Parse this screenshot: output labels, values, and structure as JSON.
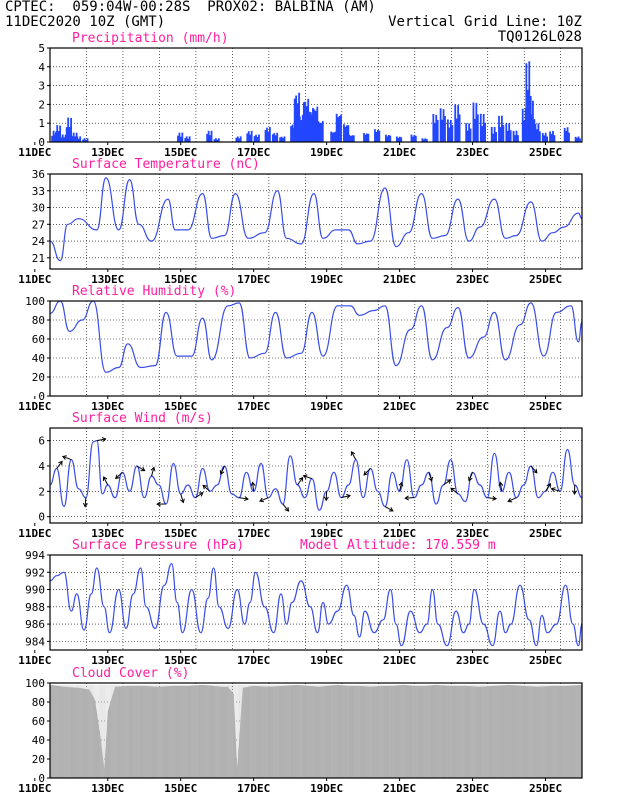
{
  "header": {
    "line1": "CPTEC:  059:04W-00:28S  PROX02: BALBINA (AM)",
    "line2": "11DEC2020 10Z (GMT)",
    "grid_note": "Vertical Grid Line: 10Z",
    "code": "TQ0126L028",
    "header_color": "#ff7f1e",
    "title_color": "#ff1ea0",
    "line_color": "#3a4de8",
    "bar_color": "#2346ff",
    "cloud_color": "#a8a8a8"
  },
  "chart_data": [
    {
      "type": "bar",
      "title": "Precipitation (mm/h)",
      "ylim": [
        0,
        5
      ],
      "yticks": [
        "0",
        "1",
        "2",
        "3",
        "4",
        "5"
      ],
      "xticks": [
        "11DEC",
        "13DEC",
        "15DEC",
        "17DEC",
        "19DEC",
        "21DEC",
        "23DEC",
        "25DEC"
      ],
      "x_start_day": 11.4167,
      "x_end_day": 26.0,
      "events": [
        [
          11.45,
          0.6
        ],
        [
          11.55,
          0.9
        ],
        [
          11.7,
          0.4
        ],
        [
          11.85,
          1.3
        ],
        [
          12.0,
          0.5
        ],
        [
          12.1,
          0.3
        ],
        [
          12.3,
          0.2
        ],
        [
          14.9,
          0.5
        ],
        [
          15.1,
          0.3
        ],
        [
          15.7,
          0.6
        ],
        [
          15.9,
          0.2
        ],
        [
          16.5,
          0.3
        ],
        [
          16.8,
          0.6
        ],
        [
          17.0,
          0.4
        ],
        [
          17.3,
          0.8
        ],
        [
          17.5,
          0.5
        ],
        [
          17.7,
          0.3
        ],
        [
          18.0,
          1.0
        ],
        [
          18.1,
          2.7
        ],
        [
          18.2,
          1.5
        ],
        [
          18.35,
          2.4
        ],
        [
          18.5,
          1.8
        ],
        [
          18.6,
          2.0
        ],
        [
          18.75,
          1.2
        ],
        [
          19.1,
          0.6
        ],
        [
          19.25,
          1.6
        ],
        [
          19.45,
          1.0
        ],
        [
          19.6,
          0.4
        ],
        [
          20.0,
          0.5
        ],
        [
          20.3,
          0.7
        ],
        [
          20.6,
          0.4
        ],
        [
          20.9,
          0.3
        ],
        [
          21.3,
          0.4
        ],
        [
          21.6,
          0.2
        ],
        [
          21.9,
          1.5
        ],
        [
          22.1,
          1.8
        ],
        [
          22.3,
          1.2
        ],
        [
          22.5,
          2.0
        ],
        [
          22.8,
          1.0
        ],
        [
          23.0,
          2.1
        ],
        [
          23.2,
          1.5
        ],
        [
          23.5,
          0.8
        ],
        [
          23.7,
          1.4
        ],
        [
          23.9,
          1.0
        ],
        [
          24.1,
          0.6
        ],
        [
          24.35,
          1.8
        ],
        [
          24.45,
          4.3
        ],
        [
          24.55,
          2.2
        ],
        [
          24.7,
          1.0
        ],
        [
          24.9,
          0.5
        ],
        [
          25.1,
          0.6
        ],
        [
          25.5,
          0.8
        ],
        [
          25.8,
          0.3
        ]
      ]
    },
    {
      "type": "line",
      "title": "Surface Temperature (nC)",
      "ylim": [
        19,
        36
      ],
      "yticks": [
        "21",
        "24",
        "27",
        "30",
        "33",
        "36"
      ],
      "xticks": [
        "11DEC",
        "13DEC",
        "15DEC",
        "17DEC",
        "19DEC",
        "21DEC",
        "23DEC",
        "25DEC"
      ],
      "x": [
        11.4167,
        11.7,
        11.9,
        12.2,
        12.7,
        12.95,
        13.3,
        13.6,
        13.85,
        14.2,
        14.65,
        14.85,
        15.2,
        15.6,
        15.85,
        16.2,
        16.5,
        16.85,
        17.3,
        17.65,
        17.9,
        18.3,
        18.65,
        18.9,
        19.25,
        19.6,
        19.85,
        20.2,
        20.6,
        20.9,
        21.25,
        21.6,
        21.9,
        22.25,
        22.6,
        22.9,
        23.2,
        23.6,
        23.9,
        24.2,
        24.6,
        24.9,
        25.2,
        25.5,
        25.9,
        26.0
      ],
      "y": [
        24,
        20.5,
        27,
        28,
        26,
        35.3,
        26,
        35,
        27,
        24,
        31.5,
        26,
        26,
        32.5,
        24.5,
        25,
        32.5,
        24.5,
        25.5,
        33,
        24.5,
        23.5,
        32.5,
        24.5,
        26,
        26,
        23.5,
        24,
        33.5,
        23,
        25.5,
        32.5,
        24.5,
        25,
        31.5,
        24,
        26.5,
        31.5,
        24.5,
        25,
        31,
        24,
        25.5,
        26.5,
        29,
        28
      ]
    },
    {
      "type": "line",
      "title": "Relative Humidity (%)",
      "ylim": [
        0,
        100
      ],
      "yticks": [
        "0",
        "20",
        "40",
        "60",
        "80",
        "100"
      ],
      "xticks": [
        "11DEC",
        "13DEC",
        "15DEC",
        "17DEC",
        "19DEC",
        "21DEC",
        "23DEC",
        "25DEC"
      ],
      "x": [
        11.4167,
        11.7,
        11.95,
        12.3,
        12.6,
        12.95,
        13.3,
        13.55,
        13.9,
        14.3,
        14.6,
        14.9,
        15.3,
        15.6,
        15.85,
        16.3,
        16.6,
        16.9,
        17.3,
        17.6,
        17.9,
        18.3,
        18.6,
        18.9,
        19.3,
        19.65,
        19.9,
        20.3,
        20.6,
        20.9,
        21.3,
        21.6,
        21.9,
        22.3,
        22.6,
        22.9,
        23.3,
        23.6,
        23.9,
        24.3,
        24.6,
        24.95,
        25.3,
        25.7,
        25.9,
        26.0
      ],
      "y": [
        87,
        100,
        68,
        80,
        100,
        25,
        30,
        55,
        30,
        32,
        88,
        42,
        42,
        82,
        38,
        95,
        98,
        40,
        45,
        88,
        40,
        45,
        88,
        42,
        95,
        95,
        85,
        90,
        95,
        32,
        70,
        95,
        38,
        72,
        93,
        40,
        62,
        88,
        38,
        75,
        98,
        42,
        88,
        95,
        57,
        78
      ]
    },
    {
      "type": "line",
      "title": "Surface Wind (m/s)",
      "ylim": [
        -0.5,
        7
      ],
      "yticks": [
        "0",
        "2",
        "4",
        "6"
      ],
      "xticks": [
        "11DEC",
        "13DEC",
        "15DEC",
        "17DEC",
        "19DEC",
        "21DEC",
        "23DEC",
        "25DEC"
      ],
      "x": [
        11.4167,
        11.6,
        11.8,
        12.0,
        12.2,
        12.4,
        12.6,
        12.7,
        12.85,
        13.0,
        13.2,
        13.4,
        13.6,
        13.8,
        14.0,
        14.2,
        14.4,
        14.6,
        14.8,
        15.0,
        15.2,
        15.4,
        15.6,
        15.8,
        16.0,
        16.2,
        16.4,
        16.6,
        16.8,
        17.0,
        17.2,
        17.4,
        17.6,
        17.8,
        18.0,
        18.2,
        18.4,
        18.6,
        18.8,
        19.0,
        19.2,
        19.4,
        19.6,
        19.8,
        20.0,
        20.2,
        20.4,
        20.6,
        20.8,
        21.0,
        21.2,
        21.4,
        21.6,
        21.8,
        22.0,
        22.2,
        22.4,
        22.6,
        22.8,
        23.0,
        23.2,
        23.4,
        23.6,
        23.8,
        24.0,
        24.2,
        24.4,
        24.6,
        24.8,
        25.0,
        25.2,
        25.4,
        25.6,
        25.8,
        26.0
      ],
      "y": [
        2.5,
        3.8,
        0.8,
        4.5,
        2.2,
        1.5,
        5.9,
        6.0,
        1.8,
        2.5,
        1.5,
        3.5,
        2.0,
        4.0,
        1.5,
        3.2,
        2.5,
        1.0,
        4.2,
        1.8,
        2.5,
        1.5,
        3.8,
        2.0,
        2.5,
        4.0,
        1.8,
        1.5,
        3.5,
        2.0,
        4.2,
        1.5,
        2.2,
        1.0,
        4.8,
        2.5,
        1.5,
        3.0,
        0.5,
        2.0,
        3.5,
        1.5,
        2.5,
        4.5,
        1.5,
        3.8,
        2.0,
        0.8,
        3.5,
        2.0,
        4.5,
        1.5,
        2.5,
        3.5,
        1.0,
        2.5,
        4.5,
        1.8,
        1.2,
        3.5,
        2.5,
        1.5,
        5.0,
        2.0,
        3.5,
        1.5,
        2.5,
        4.0,
        1.5,
        2.0,
        3.5,
        2.0,
        5.3,
        2.5,
        1.5
      ]
    },
    {
      "type": "line",
      "title": "Surface Pressure (hPa)",
      "subtitle": "Model Altitude: 170.559  m",
      "ylim": [
        983,
        994
      ],
      "yticks": [
        "984",
        "986",
        "988",
        "990",
        "992",
        "994"
      ],
      "xticks": [
        "11DEC",
        "13DEC",
        "15DEC",
        "17DEC",
        "19DEC",
        "21DEC",
        "23DEC",
        "25DEC"
      ],
      "x": [
        11.4167,
        11.6,
        11.8,
        12.0,
        12.15,
        12.35,
        12.55,
        12.7,
        12.9,
        13.05,
        13.3,
        13.5,
        13.7,
        13.9,
        14.05,
        14.3,
        14.55,
        14.75,
        14.9,
        15.05,
        15.3,
        15.55,
        15.75,
        15.9,
        16.05,
        16.3,
        16.55,
        16.75,
        16.9,
        17.05,
        17.3,
        17.55,
        17.75,
        17.9,
        18.05,
        18.3,
        18.55,
        18.75,
        18.9,
        19.05,
        19.3,
        19.55,
        19.75,
        19.9,
        20.05,
        20.3,
        20.55,
        20.75,
        20.9,
        21.05,
        21.3,
        21.55,
        21.75,
        21.9,
        22.05,
        22.3,
        22.55,
        22.75,
        22.9,
        23.05,
        23.3,
        23.55,
        23.75,
        23.9,
        24.05,
        24.3,
        24.55,
        24.75,
        24.9,
        25.05,
        25.3,
        25.55,
        25.75,
        25.9,
        26.0
      ],
      "y": [
        991,
        991.6,
        992,
        987.5,
        989.5,
        985.3,
        989.5,
        992.5,
        988,
        985,
        990,
        985.5,
        989.5,
        992.5,
        988,
        985.5,
        990.5,
        993,
        988.5,
        985,
        990,
        985,
        989,
        992.5,
        988,
        985.5,
        990,
        986,
        988.5,
        992,
        988,
        985,
        989.5,
        986,
        988.5,
        991,
        988,
        985,
        988.5,
        986,
        987.5,
        990.5,
        987,
        984.5,
        987.5,
        985,
        986.5,
        990,
        986,
        983.5,
        987.5,
        985,
        986,
        990,
        986,
        983.5,
        987.5,
        985,
        986,
        990,
        986,
        983.5,
        987.5,
        985,
        986,
        990.5,
        986.5,
        983.5,
        987,
        985,
        986,
        990.5,
        986,
        983.5,
        986
      ]
    },
    {
      "type": "area",
      "title": "Cloud Cover (%)",
      "ylim": [
        0,
        100
      ],
      "yticks": [
        "0",
        "20",
        "40",
        "60",
        "80",
        "100"
      ],
      "xticks": [
        "11DEC",
        "13DEC",
        "15DEC",
        "17DEC",
        "19DEC",
        "21DEC",
        "23DEC",
        "25DEC"
      ],
      "x": [
        11.4167,
        11.8,
        12.2,
        12.5,
        12.65,
        12.8,
        12.9,
        13.0,
        13.2,
        13.6,
        14.0,
        14.4,
        14.8,
        15.2,
        15.6,
        15.9,
        16.1,
        16.3,
        16.45,
        16.55,
        16.7,
        17.0,
        17.4,
        17.8,
        18.2,
        18.5,
        18.8,
        19.0,
        19.3,
        19.6,
        19.9,
        20.2,
        20.5,
        20.8,
        21.1,
        21.4,
        21.7,
        22.0,
        22.4,
        22.8,
        23.2,
        23.6,
        24.0,
        24.4,
        24.8,
        25.2,
        25.6,
        26.0
      ],
      "y": [
        98,
        96,
        95,
        93,
        82,
        45,
        10,
        70,
        96,
        97,
        97,
        96,
        97,
        97,
        98,
        97,
        96,
        96,
        88,
        10,
        95,
        97,
        96,
        97,
        98,
        97,
        96,
        97,
        98,
        97,
        97,
        96,
        97,
        97,
        98,
        97,
        97,
        98,
        97,
        97,
        96,
        97,
        98,
        97,
        96,
        97,
        97,
        98
      ]
    }
  ]
}
